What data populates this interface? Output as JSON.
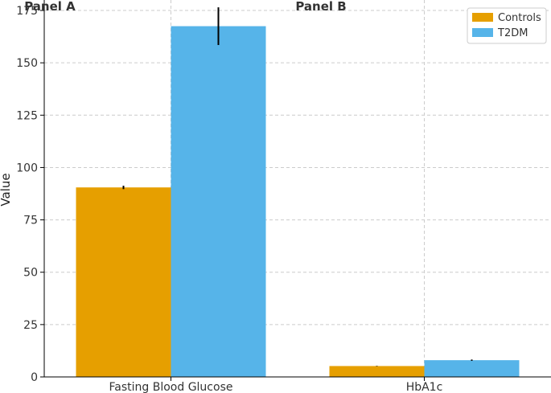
{
  "chart_data": {
    "type": "bar",
    "panels": [
      "Panel A",
      "Panel B"
    ],
    "categories": [
      "Fasting Blood Glucose",
      "HbA1c"
    ],
    "series": [
      {
        "name": "Controls",
        "values": [
          90.5,
          5.2
        ],
        "errors": [
          0.8,
          0.1
        ],
        "color": "#E69F00"
      },
      {
        "name": "T2DM",
        "values": [
          167.5,
          8.0
        ],
        "errors": [
          9.0,
          0.3
        ],
        "color": "#56B4E9"
      }
    ],
    "xlabel": "",
    "ylabel": "Value",
    "ylim": [
      0,
      180
    ],
    "yticks": [
      0,
      25,
      50,
      75,
      100,
      125,
      150,
      175
    ],
    "grid": true,
    "legend_position": "top-right"
  }
}
